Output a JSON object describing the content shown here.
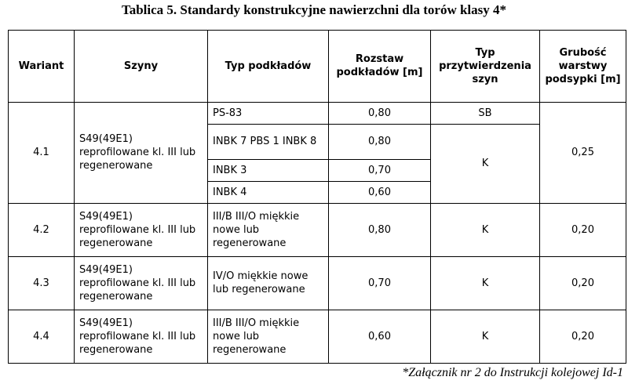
{
  "caption": "Tablica 5. Standardy konstrukcyjne nawierzchni dla torów klasy 4*",
  "headers": {
    "wariant": "Wariant",
    "szyny": "Szyny",
    "typ_podkladow": "Typ podkładów",
    "rozstaw": "Rozstaw podkładów [m]",
    "typ_przytwierdzenia": "Typ przytwierdzenia szyn",
    "grubosc": "Grubość warstwy podsypki [m]"
  },
  "rows": {
    "v41": {
      "wariant": "4.1",
      "szyny": "S49(49E1) reprofilowane kl. III lub regenerowane",
      "grubosc": "0,25",
      "sub": [
        {
          "podklady": "PS-83",
          "rozstaw": "0,80",
          "przytwierdzenie": "SB"
        },
        {
          "podklady": "INBK 7 PBS 1 INBK 8",
          "rozstaw": "0,80"
        },
        {
          "podklady": "INBK 3",
          "rozstaw": "0,70"
        },
        {
          "podklady": "INBK 4",
          "rozstaw": "0,60"
        }
      ],
      "przytwierdzenie_merged": "K"
    },
    "v42": {
      "wariant": "4.2",
      "szyny": "S49(49E1) reprofilowane kl. III lub regenerowane",
      "podklady": "III/B III/O miękkie nowe lub regenerowane",
      "rozstaw": "0,80",
      "przytwierdzenie": "K",
      "grubosc": "0,20"
    },
    "v43": {
      "wariant": "4.3",
      "szyny": "S49(49E1) reprofilowane kl. III lub regenerowane",
      "podklady": "IV/O miękkie nowe lub regenerowane",
      "rozstaw": "0,70",
      "przytwierdzenie": "K",
      "grubosc": "0,20"
    },
    "v44": {
      "wariant": "4.4",
      "szyny": "S49(49E1) reprofilowane kl. III lub regenerowane",
      "podklady": "III/B III/O miękkie nowe lub regenerowane",
      "rozstaw": "0,60",
      "przytwierdzenie": "K",
      "grubosc": "0,20"
    }
  },
  "footnote": "*Załącznik nr 2 do Instrukcji kolejowej Id-1"
}
